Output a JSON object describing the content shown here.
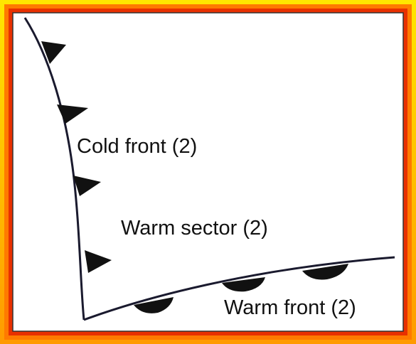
{
  "labels": {
    "cold_front": "Cold front (2)",
    "warm_sector": "Warm sector (2)",
    "warm_front": "Warm front (2)"
  }
}
